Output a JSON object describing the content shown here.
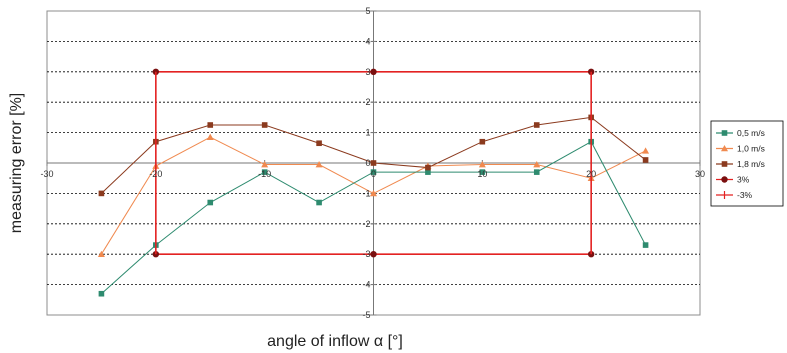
{
  "chart_data": {
    "type": "line",
    "xlabel": "angle of inflow α [°]",
    "ylabel": "measuring error [%]",
    "xlim": [
      -30,
      30
    ],
    "ylim": [
      -5,
      5
    ],
    "x_ticks": [
      "-30",
      "-20",
      "-10",
      "0",
      "10",
      "20",
      "30"
    ],
    "y_ticks": [
      "5",
      "4",
      "3",
      "2",
      "1",
      "0",
      "-1",
      "-2",
      "-3",
      "-4",
      "-5"
    ],
    "grid": "horizontal dashed",
    "legend_position": "right",
    "series": [
      {
        "name": "0,5 m/s",
        "color": "#2e8b6f",
        "marker": "square",
        "x": [
          -25,
          -20,
          -15,
          -10,
          -5,
          0,
          5,
          10,
          15,
          20,
          25
        ],
        "y": [
          -4.3,
          -2.7,
          -1.3,
          -0.3,
          -1.3,
          -0.3,
          -0.3,
          -0.3,
          -0.3,
          0.7,
          -2.7
        ]
      },
      {
        "name": "1,0 m/s",
        "color": "#f08a50",
        "marker": "triangle",
        "x": [
          -25,
          -20,
          -15,
          -10,
          -5,
          0,
          5,
          10,
          15,
          20,
          25
        ],
        "y": [
          -3.0,
          -0.1,
          0.85,
          -0.05,
          -0.05,
          -1.0,
          -0.1,
          -0.05,
          -0.05,
          -0.5,
          0.4
        ]
      },
      {
        "name": "1,8 m/s",
        "color": "#8b3a1e",
        "marker": "square",
        "x": [
          -25,
          -20,
          -15,
          -10,
          -5,
          0,
          5,
          10,
          15,
          20,
          25
        ],
        "y": [
          -1.0,
          0.7,
          1.25,
          1.25,
          0.65,
          0.0,
          -0.15,
          0.7,
          1.25,
          1.5,
          0.1
        ]
      },
      {
        "name": "3%",
        "color": "#e32222",
        "marker_color": "#7a1010",
        "marker": "circle",
        "x": [
          -20,
          0,
          20
        ],
        "y": [
          3,
          3,
          3
        ]
      },
      {
        "name": "-3%",
        "color": "#e32222",
        "marker_color": "#7a1010",
        "marker": "circle",
        "x": [
          -20,
          0,
          20
        ],
        "y": [
          -3,
          -3,
          -3
        ]
      }
    ]
  }
}
